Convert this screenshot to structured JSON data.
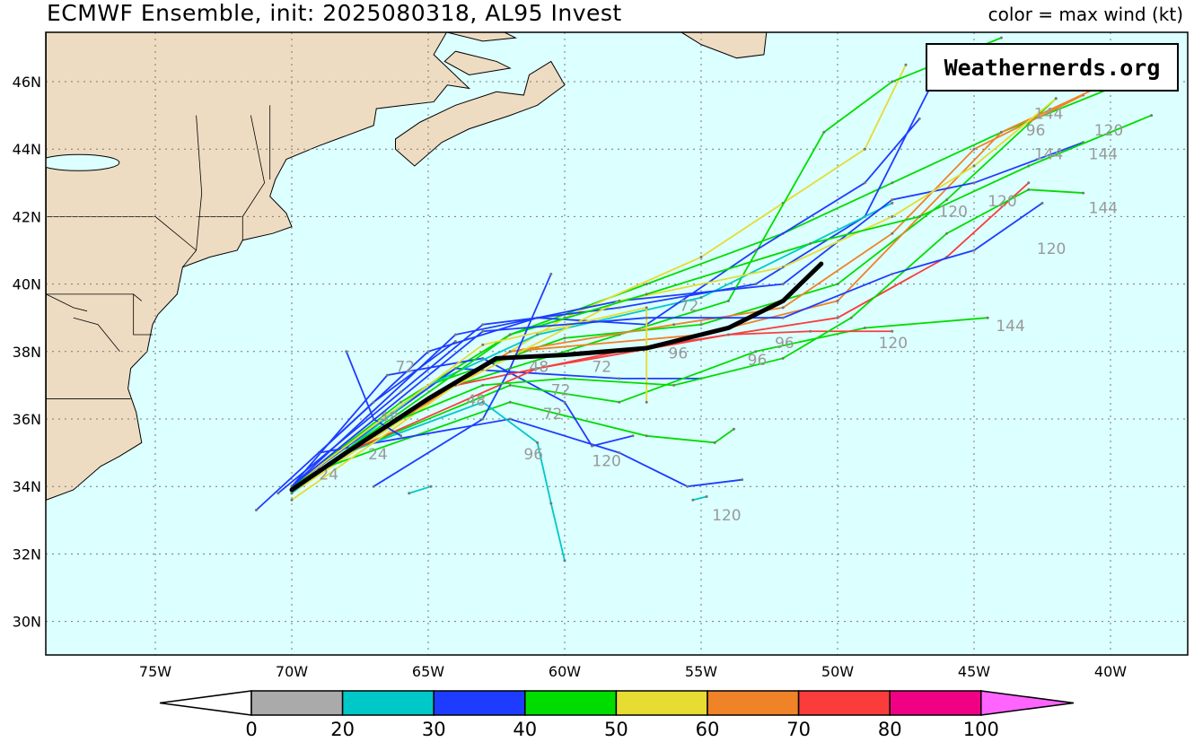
{
  "header": {
    "title": "ECMWF Ensemble, init: 2025080318, AL95 Invest",
    "subtitle": "color = max wind (kt)"
  },
  "logo": "Weathernerds.org",
  "chart_data": {
    "type": "map-tracks",
    "extent": {
      "lon": [
        -79,
        -37.2
      ],
      "lat": [
        29,
        47.5
      ]
    },
    "grid": true,
    "lat_ticks": [
      {
        "v": 30,
        "t": "30N"
      },
      {
        "v": 32,
        "t": "32N"
      },
      {
        "v": 34,
        "t": "34N"
      },
      {
        "v": 36,
        "t": "36N"
      },
      {
        "v": 38,
        "t": "38N"
      },
      {
        "v": 40,
        "t": "40N"
      },
      {
        "v": 42,
        "t": "42N"
      },
      {
        "v": 44,
        "t": "44N"
      },
      {
        "v": 46,
        "t": "46N"
      }
    ],
    "lon_ticks": [
      {
        "v": -75,
        "t": "75W"
      },
      {
        "v": -70,
        "t": "70W"
      },
      {
        "v": -65,
        "t": "65W"
      },
      {
        "v": -60,
        "t": "60W"
      },
      {
        "v": -55,
        "t": "55W"
      },
      {
        "v": -50,
        "t": "50W"
      },
      {
        "v": -45,
        "t": "45W"
      },
      {
        "v": -40,
        "t": "40W"
      }
    ],
    "colors": {
      "land": "#eedcc2",
      "ocean": "#dcffff",
      "mean_track": "#000000",
      "label": "#999999"
    },
    "colorbar": {
      "bounds": [
        "0",
        "20",
        "30",
        "40",
        "50",
        "60",
        "70",
        "80",
        "100"
      ],
      "colors": [
        "#aaaaaa",
        "#00c8c8",
        "#1e3cff",
        "#00dc00",
        "#e6dc32",
        "#f08228",
        "#fa3c3c",
        "#f00082",
        "#ff64ff"
      ]
    },
    "mean_track": [
      [
        -70,
        33.9
      ],
      [
        -68,
        35
      ],
      [
        -65,
        36.6
      ],
      [
        -62.5,
        37.8
      ],
      [
        -60,
        37.9
      ],
      [
        -57,
        38.1
      ],
      [
        -54,
        38.7
      ],
      [
        -52,
        39.5
      ],
      [
        -50.6,
        40.6
      ]
    ],
    "tracks": [
      {
        "c": 3,
        "p": [
          [
            -70,
            34
          ],
          [
            -66,
            36.5
          ],
          [
            -62,
            38.5
          ],
          [
            -57,
            40
          ],
          [
            -52,
            41.5
          ],
          [
            -48,
            43
          ],
          [
            -44,
            44.5
          ],
          [
            -40,
            45.8
          ]
        ]
      },
      {
        "c": 4,
        "p": [
          [
            -70,
            33.8
          ],
          [
            -65,
            36.5
          ],
          [
            -60,
            39
          ],
          [
            -55,
            40.8
          ],
          [
            -52,
            42.4
          ],
          [
            -49,
            44
          ],
          [
            -47.5,
            46.5
          ]
        ]
      },
      {
        "c": 2,
        "p": [
          [
            -70.5,
            33.8
          ],
          [
            -66,
            36.8
          ],
          [
            -63,
            38.8
          ],
          [
            -58,
            39.3
          ],
          [
            -53,
            40
          ],
          [
            -49,
            42
          ],
          [
            -46.5,
            46
          ]
        ]
      },
      {
        "c": 3,
        "p": [
          [
            -70,
            34
          ],
          [
            -65,
            37
          ],
          [
            -60,
            38.4
          ],
          [
            -55,
            38.8
          ],
          [
            -50,
            40
          ],
          [
            -46,
            42.5
          ],
          [
            -42,
            45.5
          ]
        ]
      },
      {
        "c": 3,
        "p": [
          [
            -69,
            34.5
          ],
          [
            -64,
            37
          ],
          [
            -58,
            38.5
          ],
          [
            -54,
            39.5
          ],
          [
            -50.5,
            44.5
          ],
          [
            -48,
            46
          ],
          [
            -44,
            47.3
          ]
        ]
      },
      {
        "c": 2,
        "p": [
          [
            -70,
            34
          ],
          [
            -64,
            37.5
          ],
          [
            -58,
            37.2
          ],
          [
            -55,
            37.2
          ]
        ]
      },
      {
        "c": 3,
        "p": [
          [
            -69,
            34.5
          ],
          [
            -62,
            36.5
          ],
          [
            -57,
            35.5
          ],
          [
            -54.5,
            35.3
          ],
          [
            -53.8,
            35.7
          ]
        ]
      },
      {
        "c": 2,
        "p": [
          [
            -69,
            35
          ],
          [
            -62,
            36
          ],
          [
            -58,
            35
          ],
          [
            -55.5,
            34
          ],
          [
            -53.5,
            34.2
          ]
        ]
      },
      {
        "c": 1,
        "p": [
          [
            -68,
            35
          ],
          [
            -63,
            36.5
          ],
          [
            -61,
            35.3
          ],
          [
            -60.5,
            33.5
          ],
          [
            -60,
            31.8
          ]
        ]
      },
      {
        "c": 2,
        "p": [
          [
            -70,
            34
          ],
          [
            -66.5,
            37.3
          ],
          [
            -63,
            37.8
          ],
          [
            -60,
            36.5
          ],
          [
            -59,
            35.2
          ],
          [
            -57.5,
            35.5
          ]
        ]
      },
      {
        "c": 1,
        "p": [
          [
            -70,
            33.8
          ],
          [
            -65,
            37
          ],
          [
            -61,
            38.5
          ],
          [
            -55,
            39.6
          ],
          [
            -48,
            42.4
          ]
        ]
      },
      {
        "c": 6,
        "p": [
          [
            -69,
            34.5
          ],
          [
            -64,
            37
          ],
          [
            -58,
            38
          ],
          [
            -54,
            38.5
          ],
          [
            -50,
            39
          ],
          [
            -46,
            40.8
          ],
          [
            -43,
            43
          ]
        ]
      },
      {
        "c": 5,
        "p": [
          [
            -69,
            34.5
          ],
          [
            -62,
            38
          ],
          [
            -56,
            38.8
          ],
          [
            -52,
            39.3
          ],
          [
            -48,
            41.5
          ],
          [
            -45,
            44
          ],
          [
            -41,
            45.6
          ]
        ]
      },
      {
        "c": 5,
        "p": [
          [
            -68,
            35
          ],
          [
            -62,
            38
          ],
          [
            -55,
            38.5
          ],
          [
            -50,
            39.5
          ],
          [
            -47,
            42
          ],
          [
            -44,
            44.5
          ],
          [
            -40,
            46
          ]
        ]
      },
      {
        "c": 3,
        "p": [
          [
            -68,
            35
          ],
          [
            -62,
            37
          ],
          [
            -58,
            36.5
          ],
          [
            -53,
            38
          ],
          [
            -49,
            38.7
          ],
          [
            -44.5,
            39
          ]
        ]
      },
      {
        "c": 6,
        "p": [
          [
            -68,
            35
          ],
          [
            -61,
            37.5
          ],
          [
            -54,
            38.5
          ],
          [
            -51,
            38.6
          ],
          [
            -48,
            38.6
          ]
        ]
      },
      {
        "c": 2,
        "p": [
          [
            -69,
            35
          ],
          [
            -65,
            38
          ],
          [
            -61,
            39
          ],
          [
            -57,
            38.8
          ],
          [
            -53,
            41
          ],
          [
            -49,
            43
          ],
          [
            -47,
            44.9
          ]
        ]
      },
      {
        "c": 2,
        "p": [
          [
            -70,
            34
          ],
          [
            -64,
            38.5
          ],
          [
            -58,
            39.5
          ],
          [
            -52,
            40
          ],
          [
            -48,
            42.5
          ],
          [
            -45,
            43
          ],
          [
            -41,
            44.2
          ]
        ]
      },
      {
        "c": 4,
        "p": [
          [
            -70,
            33.6
          ],
          [
            -64,
            37
          ],
          [
            -58,
            39.5
          ],
          [
            -52,
            40.5
          ],
          [
            -48,
            42
          ],
          [
            -45,
            43.5
          ],
          [
            -42,
            45.5
          ]
        ]
      },
      {
        "c": 3,
        "p": [
          [
            -69,
            34.5
          ],
          [
            -62,
            38.5
          ],
          [
            -57,
            39.7
          ],
          [
            -51,
            41.2
          ],
          [
            -47,
            42
          ],
          [
            -43,
            43.5
          ],
          [
            -38.5,
            45
          ]
        ]
      },
      {
        "c": 2,
        "p": [
          [
            -67,
            34
          ],
          [
            -63,
            36
          ],
          [
            -62,
            37.5
          ],
          [
            -60.5,
            40.3
          ]
        ]
      },
      {
        "c": 2,
        "p": [
          [
            -71.3,
            33.3
          ],
          [
            -67,
            36.5
          ],
          [
            -64,
            38.3
          ]
        ]
      },
      {
        "c": 2,
        "p": [
          [
            -68,
            38
          ],
          [
            -67,
            36
          ],
          [
            -66,
            35.5
          ]
        ]
      },
      {
        "c": 4,
        "p": [
          [
            -70,
            34
          ],
          [
            -63,
            38.2
          ],
          [
            -57,
            39.3
          ],
          [
            -57,
            36.5
          ]
        ]
      },
      {
        "c": 3,
        "p": [
          [
            -70,
            34
          ],
          [
            -66,
            36
          ],
          [
            -63,
            37
          ],
          [
            -60,
            37.2
          ],
          [
            -56,
            37
          ],
          [
            -52,
            37.8
          ],
          [
            -49.5,
            39
          ],
          [
            -46,
            41.5
          ],
          [
            -43,
            42.8
          ],
          [
            -41,
            42.7
          ]
        ]
      },
      {
        "c": 2,
        "p": [
          [
            -70,
            34
          ],
          [
            -63,
            38.6
          ],
          [
            -57,
            39
          ],
          [
            -52,
            39
          ],
          [
            -48,
            40.3
          ],
          [
            -45,
            41
          ],
          [
            -42.5,
            42.4
          ]
        ]
      },
      {
        "c": 1,
        "p": [
          [
            -65.7,
            33.8
          ],
          [
            -64.9,
            34
          ]
        ]
      },
      {
        "c": 1,
        "p": [
          [
            -55.3,
            33.6
          ],
          [
            -54.8,
            33.7
          ]
        ]
      }
    ],
    "labels": [
      {
        "lon": -66.2,
        "lat": 37.4,
        "t": "72"
      },
      {
        "lon": -63.6,
        "lat": 36.4,
        "t": "48"
      },
      {
        "lon": -61.3,
        "lat": 37.4,
        "t": "48"
      },
      {
        "lon": -60.5,
        "lat": 36.7,
        "t": "72"
      },
      {
        "lon": -60.8,
        "lat": 36.0,
        "t": "72"
      },
      {
        "lon": -59,
        "lat": 37.4,
        "t": "72"
      },
      {
        "lon": -61.5,
        "lat": 34.8,
        "t": "96"
      },
      {
        "lon": -59,
        "lat": 34.6,
        "t": "120"
      },
      {
        "lon": -56.2,
        "lat": 37.8,
        "t": "96"
      },
      {
        "lon": -55.8,
        "lat": 39.2,
        "t": "72"
      },
      {
        "lon": -53.3,
        "lat": 37.6,
        "t": "96"
      },
      {
        "lon": -52.3,
        "lat": 38.1,
        "t": "96"
      },
      {
        "lon": -48.5,
        "lat": 38.1,
        "t": "120"
      },
      {
        "lon": -54.6,
        "lat": 33.0,
        "t": "120"
      },
      {
        "lon": -44.2,
        "lat": 38.6,
        "t": "144"
      },
      {
        "lon": -46.3,
        "lat": 42.0,
        "t": "120"
      },
      {
        "lon": -44.5,
        "lat": 42.3,
        "t": "120"
      },
      {
        "lon": -42.7,
        "lat": 40.9,
        "t": "120"
      },
      {
        "lon": -40.8,
        "lat": 42.1,
        "t": "144"
      },
      {
        "lon": -40.8,
        "lat": 43.7,
        "t": "144"
      },
      {
        "lon": -42.8,
        "lat": 43.7,
        "t": "144"
      },
      {
        "lon": -43.1,
        "lat": 44.4,
        "t": "96"
      },
      {
        "lon": -42.8,
        "lat": 44.9,
        "t": "144"
      },
      {
        "lon": -40.6,
        "lat": 44.4,
        "t": "120"
      },
      {
        "lon": -67.2,
        "lat": 34.8,
        "t": "24"
      },
      {
        "lon": -66.8,
        "lat": 35.9,
        "t": "48"
      },
      {
        "lon": -69,
        "lat": 34.2,
        "t": "24"
      }
    ]
  }
}
